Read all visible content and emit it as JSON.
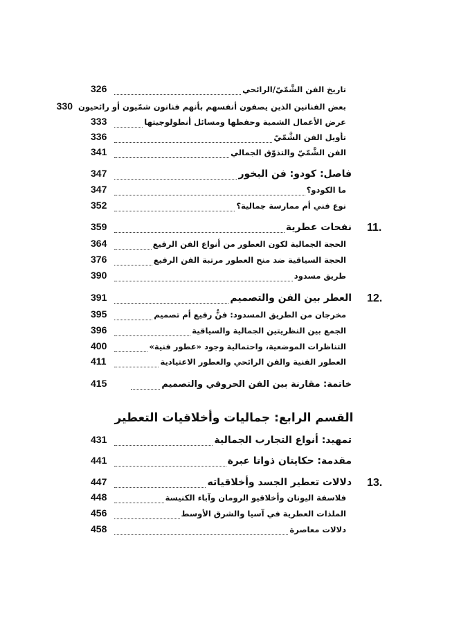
{
  "entries": [
    {
      "type": "sub",
      "title": "تاريخ الفن الشَّمّيّ/الرائحي",
      "page": "326"
    },
    {
      "type": "sub",
      "title": "بعض الفنانين الذين يصفون أنفسهم بأنهم فنانون شمّيون أو رائحيون",
      "page": "330"
    },
    {
      "type": "sub",
      "title": "عرض الأعمال الشمية وحفظها ومسائل أنطولوجيتها",
      "page": "333"
    },
    {
      "type": "sub",
      "title": "تأويل الفن الشَّمّيّ",
      "page": "336"
    },
    {
      "type": "sub",
      "title": "الفن الشَّمّيّ والتذوّق الجمالي",
      "page": "341"
    },
    {
      "type": "intro",
      "title": "فاصل: كودو: فن البخور",
      "page": "347"
    },
    {
      "type": "sub",
      "title": "ما الكودو؟",
      "page": "347"
    },
    {
      "type": "sub",
      "title": "نوع فني أم ممارسة جمالية؟",
      "page": "352"
    },
    {
      "type": "sec",
      "number": "11.",
      "title": "نفحات عطرية",
      "page": "359"
    },
    {
      "type": "sub",
      "title": "الحجة الجمالية لكون العطور من أنواع الفن الرفيع",
      "page": "364"
    },
    {
      "type": "sub",
      "title": "الحجة السياقية ضد منح العطور مرتبة الفن الرفيع",
      "page": "376"
    },
    {
      "type": "sub",
      "title": "طريق مسدود",
      "page": "390"
    },
    {
      "type": "sec",
      "number": "12.",
      "title": "العطر بين الفن والتصميم",
      "page": "391"
    },
    {
      "type": "sub",
      "title": "مخرجان من الطريق المسدود: فنٌّ رفيع أم تصميم",
      "page": "395"
    },
    {
      "type": "sub",
      "title": "الجمع بين النظريتين الجمالية والسياقية",
      "page": "396"
    },
    {
      "type": "sub",
      "title": "التناظرات الموضعية، واحتمالية وجود «عطور فنية»",
      "page": "400"
    },
    {
      "type": "sub",
      "title": "العطور الفنية والفن الرائحي والعطور الاعتيادية",
      "page": "411"
    },
    {
      "type": "closing",
      "title": "خاتمة: مقارنة بين الفن الحروفي والتصميم",
      "page": "415"
    },
    {
      "type": "intro",
      "title": "تمهيد: أنواع التجارب الجمالية",
      "page": "431"
    },
    {
      "type": "intro",
      "title": "مقدمة: حكايتان ذواتا عبرة",
      "page": "441"
    },
    {
      "type": "sec",
      "number": "13.",
      "title": "دلالات تعطير الجسد وأخلاقياته",
      "page": "447"
    },
    {
      "type": "sub",
      "title": "فلاسفة اليونان وأخلاقيو الرومان وآباء الكنيسة",
      "page": "448"
    },
    {
      "type": "sub",
      "title": "الملذات العطرية في آسيا والشرق الأوسط",
      "page": "456"
    },
    {
      "type": "sub",
      "title": "دلالات معاصرة",
      "page": "458"
    }
  ],
  "part_heading": "القسم الرابع: جماليات وأخلاقيات التعطير"
}
